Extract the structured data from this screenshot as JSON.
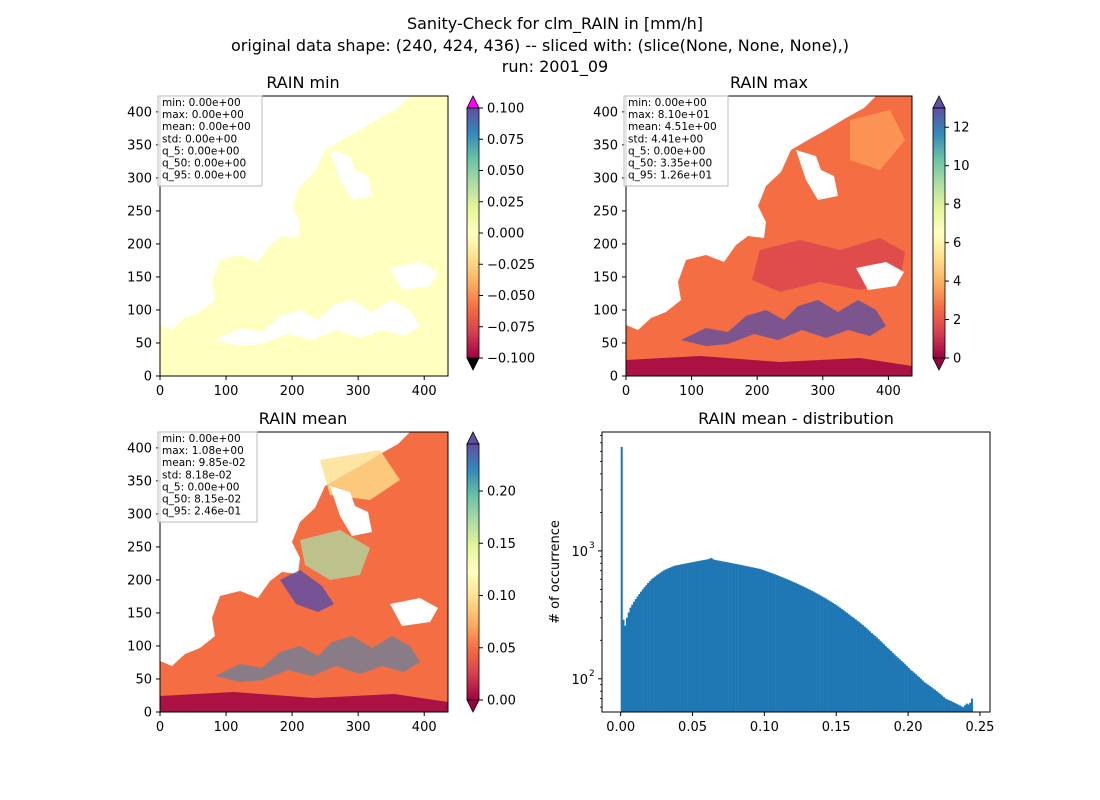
{
  "figure": {
    "title_lines": [
      "Sanity-Check for clm_RAIN in [mm/h]",
      "original data shape: (240, 424, 436) -- sliced with: (slice(None, None, None),)",
      "run: 2001_09"
    ]
  },
  "colors": {
    "cmap": "Spectral",
    "cmap_stops": [
      "#9e0142",
      "#d53e4f",
      "#f46d43",
      "#fdae61",
      "#fee08b",
      "#ffffbf",
      "#e6f598",
      "#abdda4",
      "#66c2a5",
      "#3288bd",
      "#5e4fa2"
    ],
    "over_min_panel": "#ff00ff",
    "under": "#000000",
    "hist_bar": "#1f77b4"
  },
  "chart_data": [
    {
      "type": "heatmap",
      "title": "RAIN min",
      "x_ticks": [
        "0",
        "100",
        "200",
        "300",
        "400"
      ],
      "y_ticks": [
        "0",
        "50",
        "100",
        "150",
        "200",
        "250",
        "300",
        "350",
        "400"
      ],
      "xlim": [
        0,
        436
      ],
      "ylim": [
        0,
        424
      ],
      "colorbar": {
        "ticks": [
          "0.100",
          "0.075",
          "0.050",
          "0.025",
          "0.000",
          "−0.025",
          "−0.050",
          "−0.075",
          "−0.100"
        ],
        "range": [
          -0.1,
          0.1
        ],
        "extend": "both"
      },
      "stats": [
        "min: 0.00e+00",
        "max: 0.00e+00",
        "mean: 0.00e+00",
        "std: 0.00e+00",
        "q_5: 0.00e+00",
        "q_50: 0.00e+00",
        "q_95: 0.00e+00"
      ]
    },
    {
      "type": "heatmap",
      "title": "RAIN max",
      "x_ticks": [
        "0",
        "100",
        "200",
        "300",
        "400"
      ],
      "y_ticks": [
        "0",
        "50",
        "100",
        "150",
        "200",
        "250",
        "300",
        "350",
        "400"
      ],
      "xlim": [
        0,
        436
      ],
      "ylim": [
        0,
        424
      ],
      "colorbar": {
        "ticks": [
          "12",
          "10",
          "8",
          "6",
          "4",
          "2",
          "0"
        ],
        "range": [
          0,
          13
        ],
        "extend": "both"
      },
      "stats": [
        "min: 0.00e+00",
        "max: 8.10e+01",
        "mean: 4.51e+00",
        "std: 4.41e+00",
        "q_5: 0.00e+00",
        "q_50: 3.35e+00",
        "q_95: 1.26e+01"
      ]
    },
    {
      "type": "heatmap",
      "title": "RAIN mean",
      "x_ticks": [
        "0",
        "100",
        "200",
        "300",
        "400"
      ],
      "y_ticks": [
        "0",
        "50",
        "100",
        "150",
        "200",
        "250",
        "300",
        "350",
        "400"
      ],
      "xlim": [
        0,
        436
      ],
      "ylim": [
        0,
        424
      ],
      "colorbar": {
        "ticks": [
          "0.20",
          "0.15",
          "0.10",
          "0.05",
          "0.00"
        ],
        "range": [
          0,
          0.245
        ],
        "extend": "both"
      },
      "stats": [
        "min: 0.00e+00",
        "max: 1.08e+00",
        "mean: 9.85e-02",
        "std: 8.18e-02",
        "q_5: 0.00e+00",
        "q_50: 8.15e-02",
        "q_95: 2.46e-01"
      ]
    },
    {
      "type": "bar",
      "title": "RAIN mean - distribution",
      "ylabel": "# of occurrence",
      "y_scale": "log",
      "x_ticks": [
        "0.00",
        "0.05",
        "0.10",
        "0.15",
        "0.20",
        "0.25"
      ],
      "y_ticks": [
        {
          "label": "10",
          "exp": "3"
        },
        {
          "label": "10",
          "exp": "2"
        }
      ],
      "xlim": [
        -0.013,
        0.257
      ],
      "ylim": [
        55,
        8500
      ],
      "bin_range": [
        0,
        0.245
      ],
      "bins": 200,
      "counts": [
        6500,
        290,
        260,
        300,
        330,
        360,
        380,
        400,
        420,
        440,
        460,
        480,
        500,
        520,
        540,
        560,
        580,
        600,
        615,
        630,
        645,
        660,
        675,
        690,
        705,
        715,
        725,
        735,
        745,
        755,
        765,
        770,
        775,
        780,
        785,
        790,
        795,
        800,
        805,
        810,
        815,
        820,
        825,
        830,
        835,
        840,
        845,
        850,
        855,
        860,
        870,
        880,
        860,
        850,
        845,
        840,
        835,
        830,
        825,
        820,
        815,
        810,
        805,
        800,
        795,
        790,
        785,
        780,
        775,
        770,
        765,
        760,
        755,
        750,
        745,
        740,
        735,
        730,
        725,
        720,
        712,
        704,
        696,
        688,
        680,
        672,
        664,
        656,
        648,
        640,
        632,
        624,
        616,
        608,
        600,
        592,
        584,
        576,
        568,
        560,
        552,
        544,
        536,
        528,
        520,
        512,
        504,
        496,
        488,
        480,
        472,
        464,
        456,
        448,
        440,
        432,
        424,
        416,
        408,
        400,
        392,
        384,
        376,
        368,
        360,
        352,
        344,
        336,
        328,
        320,
        312,
        305,
        298,
        291,
        284,
        277,
        270,
        263,
        256,
        249,
        242,
        235,
        228,
        222,
        216,
        210,
        204,
        198,
        192,
        186,
        180,
        175,
        170,
        165,
        160,
        155,
        150,
        146,
        142,
        138,
        134,
        130,
        126,
        122,
        118,
        115,
        112,
        109,
        106,
        103,
        100,
        97,
        94,
        92,
        90,
        88,
        86,
        84,
        82,
        80,
        78,
        76,
        74,
        72,
        70,
        69,
        68,
        67,
        66,
        65,
        64,
        63,
        62,
        61,
        60,
        62,
        64,
        63,
        65,
        70
      ]
    }
  ]
}
